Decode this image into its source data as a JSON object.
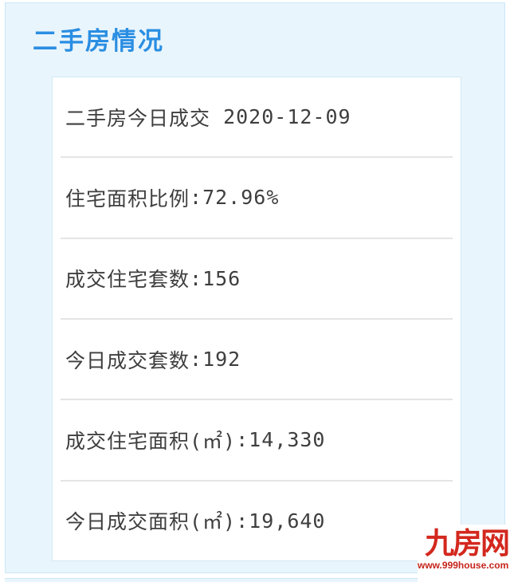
{
  "panel": {
    "title": "二手房情况"
  },
  "card": {
    "rows": [
      {
        "label": "二手房今日成交",
        "sep": " ",
        "value": "2020-12-09"
      },
      {
        "label": "住宅面积比例",
        "sep": ":",
        "value": "72.96%"
      },
      {
        "label": "成交住宅套数",
        "sep": ":",
        "value": "156"
      },
      {
        "label": "今日成交套数",
        "sep": ":",
        "value": "192"
      },
      {
        "label": "成交住宅面积(㎡)",
        "sep": ":",
        "value": "14,330"
      },
      {
        "label": "今日成交面积(㎡)",
        "sep": ":",
        "value": "19,640"
      }
    ]
  },
  "watermark": {
    "name": "九房网",
    "url": "www.999house.com"
  },
  "colors": {
    "panel_bg": "#e9f5fc",
    "panel_border": "#cbe8f5",
    "title_blue": "#2a8ee2",
    "card_border": "#cfe8f3",
    "divider": "#e4e4e4",
    "text": "#3e3e3e",
    "logo_red": "#d3281e"
  }
}
